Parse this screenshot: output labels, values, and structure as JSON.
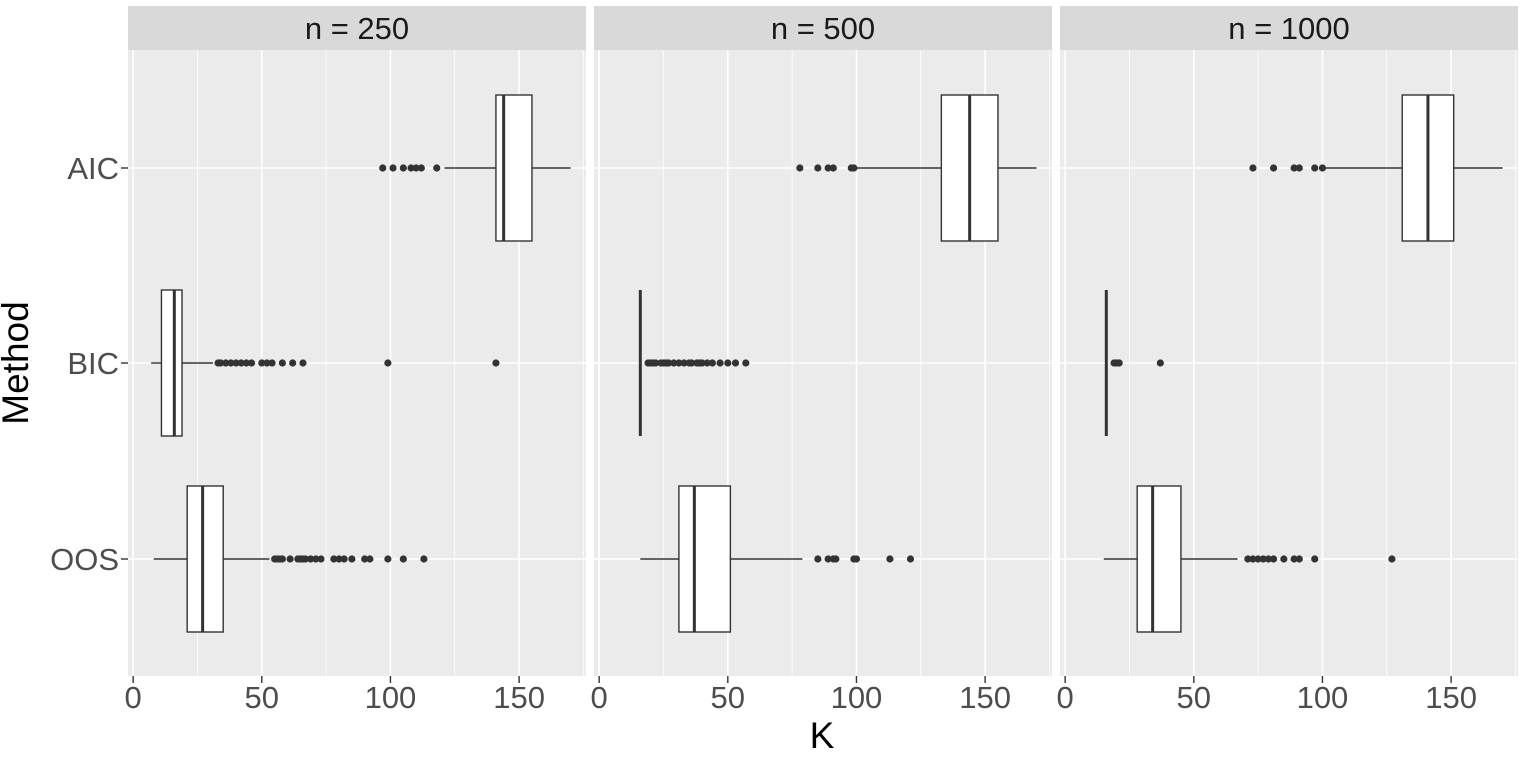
{
  "chart_data": {
    "type": "boxplot",
    "orientation": "horizontal",
    "xlabel": "K",
    "ylabel": "Method",
    "xlim": [
      -2,
      176
    ],
    "x_ticks": [
      0,
      50,
      100,
      150
    ],
    "x_tick_labels": [
      "0",
      "50",
      "100",
      "150"
    ],
    "categories": [
      "AIC",
      "BIC",
      "OOS"
    ],
    "grid": true,
    "panels": [
      {
        "label": "n = 250",
        "boxes": [
          {
            "method": "AIC",
            "whisker_low": 121,
            "q1": 141,
            "median": 144,
            "q3": 155,
            "whisker_high": 170,
            "outliers": [
              97,
              101,
              105,
              108,
              110,
              112,
              118
            ]
          },
          {
            "method": "BIC",
            "whisker_low": 7,
            "q1": 11,
            "median": 16,
            "q3": 19,
            "whisker_high": 31,
            "outliers": [
              33,
              34,
              36,
              38,
              40,
              42,
              44,
              46,
              50,
              52,
              54,
              58,
              62,
              66,
              99,
              141
            ]
          },
          {
            "method": "OOS",
            "whisker_low": 8,
            "q1": 21,
            "median": 27,
            "q3": 35,
            "whisker_high": 53,
            "outliers": [
              55,
              56,
              57,
              58,
              61,
              64,
              65,
              66,
              67,
              69,
              71,
              73,
              78,
              80,
              82,
              85,
              90,
              92,
              99,
              105,
              113
            ]
          }
        ]
      },
      {
        "label": "n = 500",
        "boxes": [
          {
            "method": "AIC",
            "whisker_low": 100,
            "q1": 133,
            "median": 144,
            "q3": 155,
            "whisker_high": 170,
            "outliers": [
              78,
              85,
              89,
              91,
              98,
              99
            ]
          },
          {
            "method": "BIC",
            "whisker_low": 16,
            "q1": 16,
            "median": 16,
            "q3": 16,
            "whisker_high": 16,
            "outliers": [
              19,
              20,
              21,
              22,
              24,
              25,
              26,
              27,
              29,
              31,
              33,
              35,
              36,
              38,
              39,
              40,
              42,
              44,
              47,
              50,
              53,
              57
            ]
          },
          {
            "method": "OOS",
            "whisker_low": 16,
            "q1": 31,
            "median": 37,
            "q3": 51,
            "whisker_high": 79,
            "outliers": [
              85,
              89,
              91,
              92,
              99,
              100,
              113,
              121
            ]
          }
        ]
      },
      {
        "label": "n = 1000",
        "boxes": [
          {
            "method": "AIC",
            "whisker_low": 101,
            "q1": 131,
            "median": 141,
            "q3": 151,
            "whisker_high": 170,
            "outliers": [
              73,
              81,
              89,
              91,
              97,
              100
            ]
          },
          {
            "method": "BIC",
            "whisker_low": 16,
            "q1": 16,
            "median": 16,
            "q3": 16,
            "whisker_high": 16,
            "outliers": [
              19,
              20,
              21,
              37
            ]
          },
          {
            "method": "OOS",
            "whisker_low": 15,
            "q1": 28,
            "median": 34,
            "q3": 45,
            "whisker_high": 67,
            "outliers": [
              71,
              73,
              75,
              77,
              79,
              81,
              85,
              89,
              91,
              97,
              127
            ]
          }
        ]
      }
    ]
  }
}
